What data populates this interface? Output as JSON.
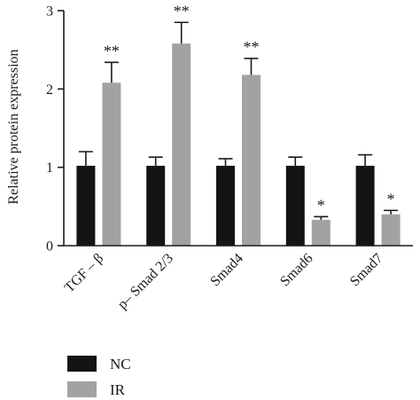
{
  "chart_data": {
    "type": "bar",
    "ylabel": "Relative protein expression",
    "ylim": [
      0,
      3
    ],
    "yticks": [
      0,
      1,
      2,
      3
    ],
    "categories": [
      "TGF – β",
      "p– Smad 2/3",
      "Smad4",
      "Smad6",
      "Smad7"
    ],
    "series": [
      {
        "name": "NC",
        "color": "#141414",
        "values": [
          1.02,
          1.02,
          1.02,
          1.02,
          1.02
        ],
        "errors": [
          0.18,
          0.11,
          0.09,
          0.11,
          0.14
        ],
        "significance": [
          "",
          "",
          "",
          "",
          ""
        ]
      },
      {
        "name": "IR",
        "color": "#a2a2a2",
        "values": [
          2.08,
          2.58,
          2.18,
          0.33,
          0.4
        ],
        "errors": [
          0.26,
          0.27,
          0.21,
          0.04,
          0.05
        ],
        "significance": [
          "**",
          "**",
          "**",
          "*",
          "*"
        ]
      }
    ],
    "legend_position": "bottom-left",
    "grid": false
  }
}
